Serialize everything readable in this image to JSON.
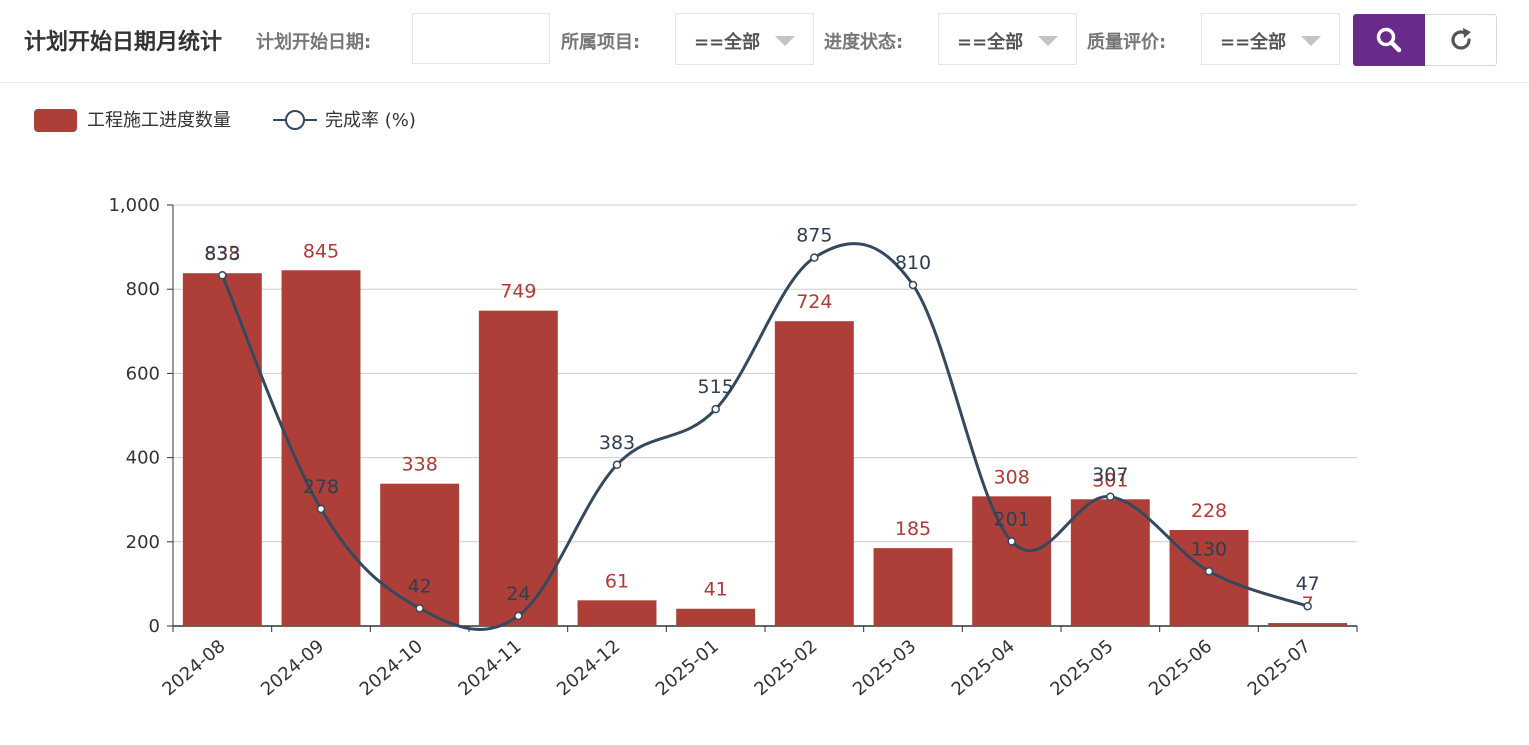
{
  "header": {
    "title": "计划开始日期月统计",
    "date_label": "计划开始日期:",
    "date_value": "",
    "project_label": "所属项目:",
    "project_value": "==全部",
    "progress_label": "进度状态:",
    "progress_value": "==全部",
    "quality_label": "质量评价:",
    "quality_value": "==全部",
    "search_icon": "search-icon",
    "refresh_icon": "refresh-icon",
    "accent_color": "#6a2a8c"
  },
  "chart_data": {
    "type": "bar",
    "categories": [
      "2024-08",
      "2024-09",
      "2024-10",
      "2024-11",
      "2024-12",
      "2025-01",
      "2025-02",
      "2025-03",
      "2025-04",
      "2025-05",
      "2025-06",
      "2025-07"
    ],
    "series": [
      {
        "name": "工程施工进度数量",
        "type": "bar",
        "color": "#ad3f38",
        "values": [
          838,
          845,
          338,
          749,
          61,
          41,
          724,
          185,
          308,
          301,
          228,
          7
        ]
      },
      {
        "name": "完成率 (%)",
        "type": "line",
        "smooth": true,
        "color": "#34495e",
        "values": [
          833,
          278,
          42,
          24,
          383,
          515,
          875,
          810,
          201,
          307,
          130,
          47
        ]
      }
    ],
    "ylim": [
      0,
      1000
    ],
    "yticks": [
      "0",
      "200",
      "400",
      "600",
      "800",
      "1,000"
    ],
    "ytick_values": [
      0,
      200,
      400,
      600,
      800,
      1000
    ],
    "grid": true,
    "legend_position": "top-left",
    "data_labels": true
  }
}
